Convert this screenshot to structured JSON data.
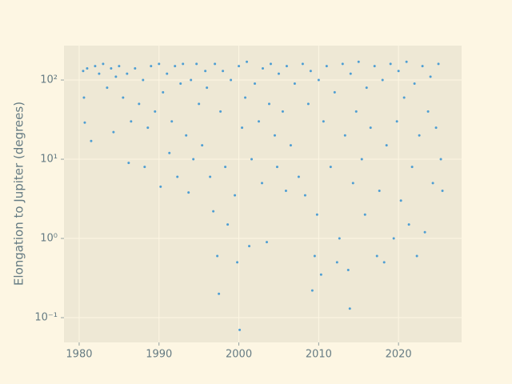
{
  "chart_data": {
    "type": "scatter",
    "ylabel": "Elongation to Jupiter (degrees)",
    "x": [
      1980.5,
      1980.6,
      1980.7,
      1981,
      1981.5,
      1982,
      1982.5,
      1983,
      1983.5,
      1984,
      1984.3,
      1984.6,
      1985,
      1985.5,
      1986,
      1986.2,
      1986.5,
      1987,
      1987.5,
      1988,
      1988.2,
      1988.6,
      1989,
      1989.5,
      1990,
      1990.2,
      1990.5,
      1991,
      1991.3,
      1991.6,
      1992,
      1992.3,
      1992.7,
      1993,
      1993.4,
      1993.7,
      1994,
      1994.3,
      1994.7,
      1995,
      1995.4,
      1995.8,
      1996,
      1996.4,
      1996.8,
      1997,
      1997.3,
      1997.5,
      1997.7,
      1998,
      1998.3,
      1998.6,
      1999,
      1999.5,
      1999.8,
      2000,
      2000.1,
      2000.4,
      2000.8,
      2001,
      2001.3,
      2001.6,
      2002,
      2002.5,
      2002.9,
      2003,
      2003.5,
      2003.8,
      2004,
      2004.5,
      2004.8,
      2005,
      2005.5,
      2005.9,
      2006,
      2006.5,
      2007,
      2007.5,
      2008,
      2008.3,
      2008.7,
      2009,
      2009.2,
      2009.5,
      2009.8,
      2010,
      2010.3,
      2010.6,
      2011,
      2011.5,
      2012,
      2012.3,
      2012.6,
      2013,
      2013.3,
      2013.7,
      2013.9,
      2014,
      2014.3,
      2014.7,
      2015,
      2015.4,
      2015.8,
      2016,
      2016.5,
      2017,
      2017.3,
      2017.6,
      2018,
      2018.2,
      2018.5,
      2019,
      2019.4,
      2019.8,
      2020,
      2020.3,
      2020.7,
      2021,
      2021.3,
      2021.7,
      2022,
      2022.3,
      2022.6,
      2023,
      2023.3,
      2023.7,
      2024,
      2024.3,
      2024.7,
      2025,
      2025.3,
      2025.5
    ],
    "values": [
      130,
      60,
      29,
      140,
      17,
      150,
      120,
      160,
      80,
      140,
      22,
      110,
      150,
      60,
      120,
      9,
      30,
      140,
      50,
      100,
      8,
      25,
      150,
      40,
      160,
      4.5,
      70,
      120,
      12,
      30,
      150,
      6,
      90,
      160,
      20,
      3.8,
      100,
      10,
      160,
      50,
      15,
      130,
      80,
      6,
      2.2,
      160,
      0.6,
      0.2,
      40,
      130,
      8,
      1.5,
      100,
      3.5,
      0.5,
      150,
      0.07,
      25,
      60,
      170,
      0.8,
      10,
      90,
      30,
      5,
      140,
      0.9,
      50,
      160,
      20,
      8,
      120,
      40,
      4,
      150,
      15,
      90,
      6,
      160,
      3.5,
      50,
      130,
      0.22,
      0.6,
      2,
      100,
      0.35,
      30,
      150,
      8,
      70,
      0.5,
      1,
      160,
      20,
      0.4,
      0.13,
      120,
      5,
      40,
      170,
      10,
      2,
      80,
      25,
      150,
      0.6,
      4,
      100,
      0.5,
      15,
      160,
      1,
      30,
      130,
      3,
      60,
      170,
      1.5,
      8,
      90,
      0.6,
      20,
      150,
      1.2,
      40,
      110,
      5,
      25,
      160,
      10,
      4
    ],
    "color": "#268bd2",
    "xlim": [
      1978.1,
      2027.9
    ],
    "xticks": [
      1980,
      1990,
      2000,
      2010,
      2020
    ],
    "ylim": [
      0.0487,
      272
    ],
    "yscale": "log",
    "yticks": [
      {
        "value": 0.1,
        "label": "10⁻¹"
      },
      {
        "value": 1,
        "label": "10⁰"
      },
      {
        "value": 10,
        "label": "10¹"
      },
      {
        "value": 100,
        "label": "10²"
      }
    ],
    "grid": true
  }
}
